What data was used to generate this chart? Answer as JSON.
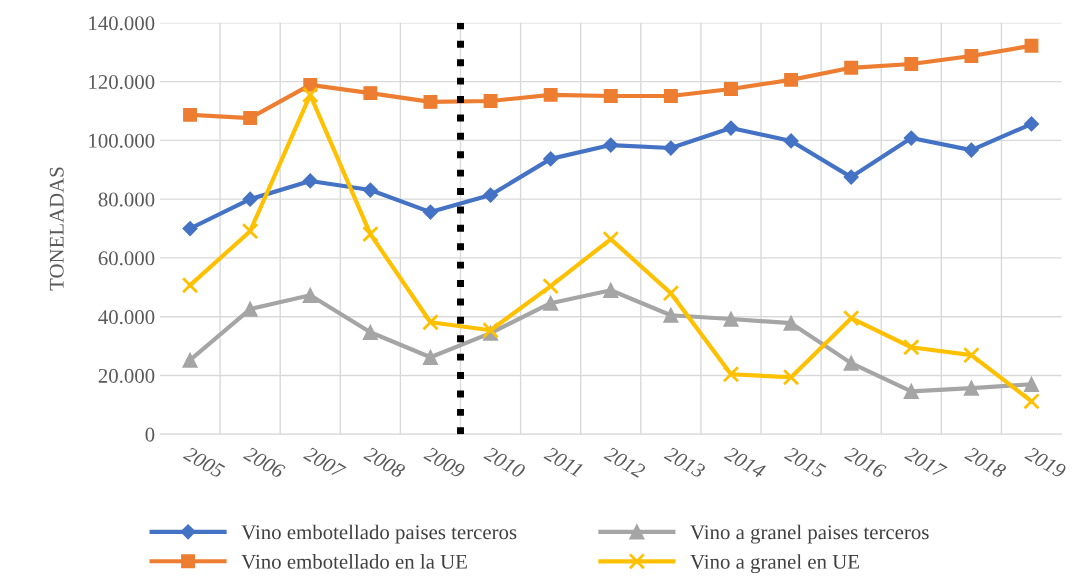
{
  "chart_data": {
    "type": "line",
    "ylabel": "TONELADAS",
    "x": [
      2005,
      2006,
      2007,
      2008,
      2009,
      2010,
      2011,
      2012,
      2013,
      2014,
      2015,
      2016,
      2017,
      2018,
      2019
    ],
    "xlim": [
      2004.5,
      2019.5
    ],
    "xticks": [
      2005,
      2006,
      2007,
      2008,
      2009,
      2010,
      2011,
      2012,
      2013,
      2014,
      2015,
      2016,
      2017,
      2018,
      2019
    ],
    "ylim": [
      0,
      140000
    ],
    "yticks": [
      {
        "value": 0,
        "label": "0"
      },
      {
        "value": 20000,
        "label": "20.000"
      },
      {
        "value": 40000,
        "label": "40.000"
      },
      {
        "value": 60000,
        "label": "60.000"
      },
      {
        "value": 80000,
        "label": "80.000"
      },
      {
        "value": 100000,
        "label": "100.000"
      },
      {
        "value": 120000,
        "label": "120.000"
      },
      {
        "value": 140000,
        "label": "140.000"
      }
    ],
    "grid": true,
    "legend": "bottom",
    "series": [
      {
        "name": "Vino embotellado paises terceros",
        "color": "#4472c4",
        "marker": "diamond",
        "values": [
          70000,
          80000,
          86200,
          83100,
          75600,
          81400,
          93700,
          98400,
          97400,
          104200,
          99800,
          87500,
          100800,
          96700,
          105600
        ]
      },
      {
        "name": "Vino embotellado en la UE",
        "color": "#ed7d31",
        "marker": "square",
        "values": [
          108700,
          107600,
          118900,
          116100,
          113100,
          113400,
          115500,
          115100,
          115100,
          117500,
          120600,
          124700,
          126000,
          128700,
          132200
        ]
      },
      {
        "name": "Vino a granel paises terceros",
        "color": "#a5a5a5",
        "marker": "triangle",
        "values": [
          25200,
          42600,
          47300,
          34700,
          26200,
          34400,
          44600,
          49000,
          40500,
          39200,
          37800,
          24200,
          14600,
          15700,
          17000
        ]
      },
      {
        "name": "Vino a granel en UE",
        "color": "#ffc000",
        "marker": "cross",
        "values": [
          50700,
          69100,
          115500,
          68100,
          38100,
          35400,
          50400,
          66400,
          48000,
          20400,
          19400,
          39500,
          29600,
          26900,
          11200
        ]
      }
    ],
    "ref_lines": [
      {
        "axis": "x",
        "value": 2009.5,
        "color": "#000000",
        "line_style": "dotted"
      }
    ]
  }
}
